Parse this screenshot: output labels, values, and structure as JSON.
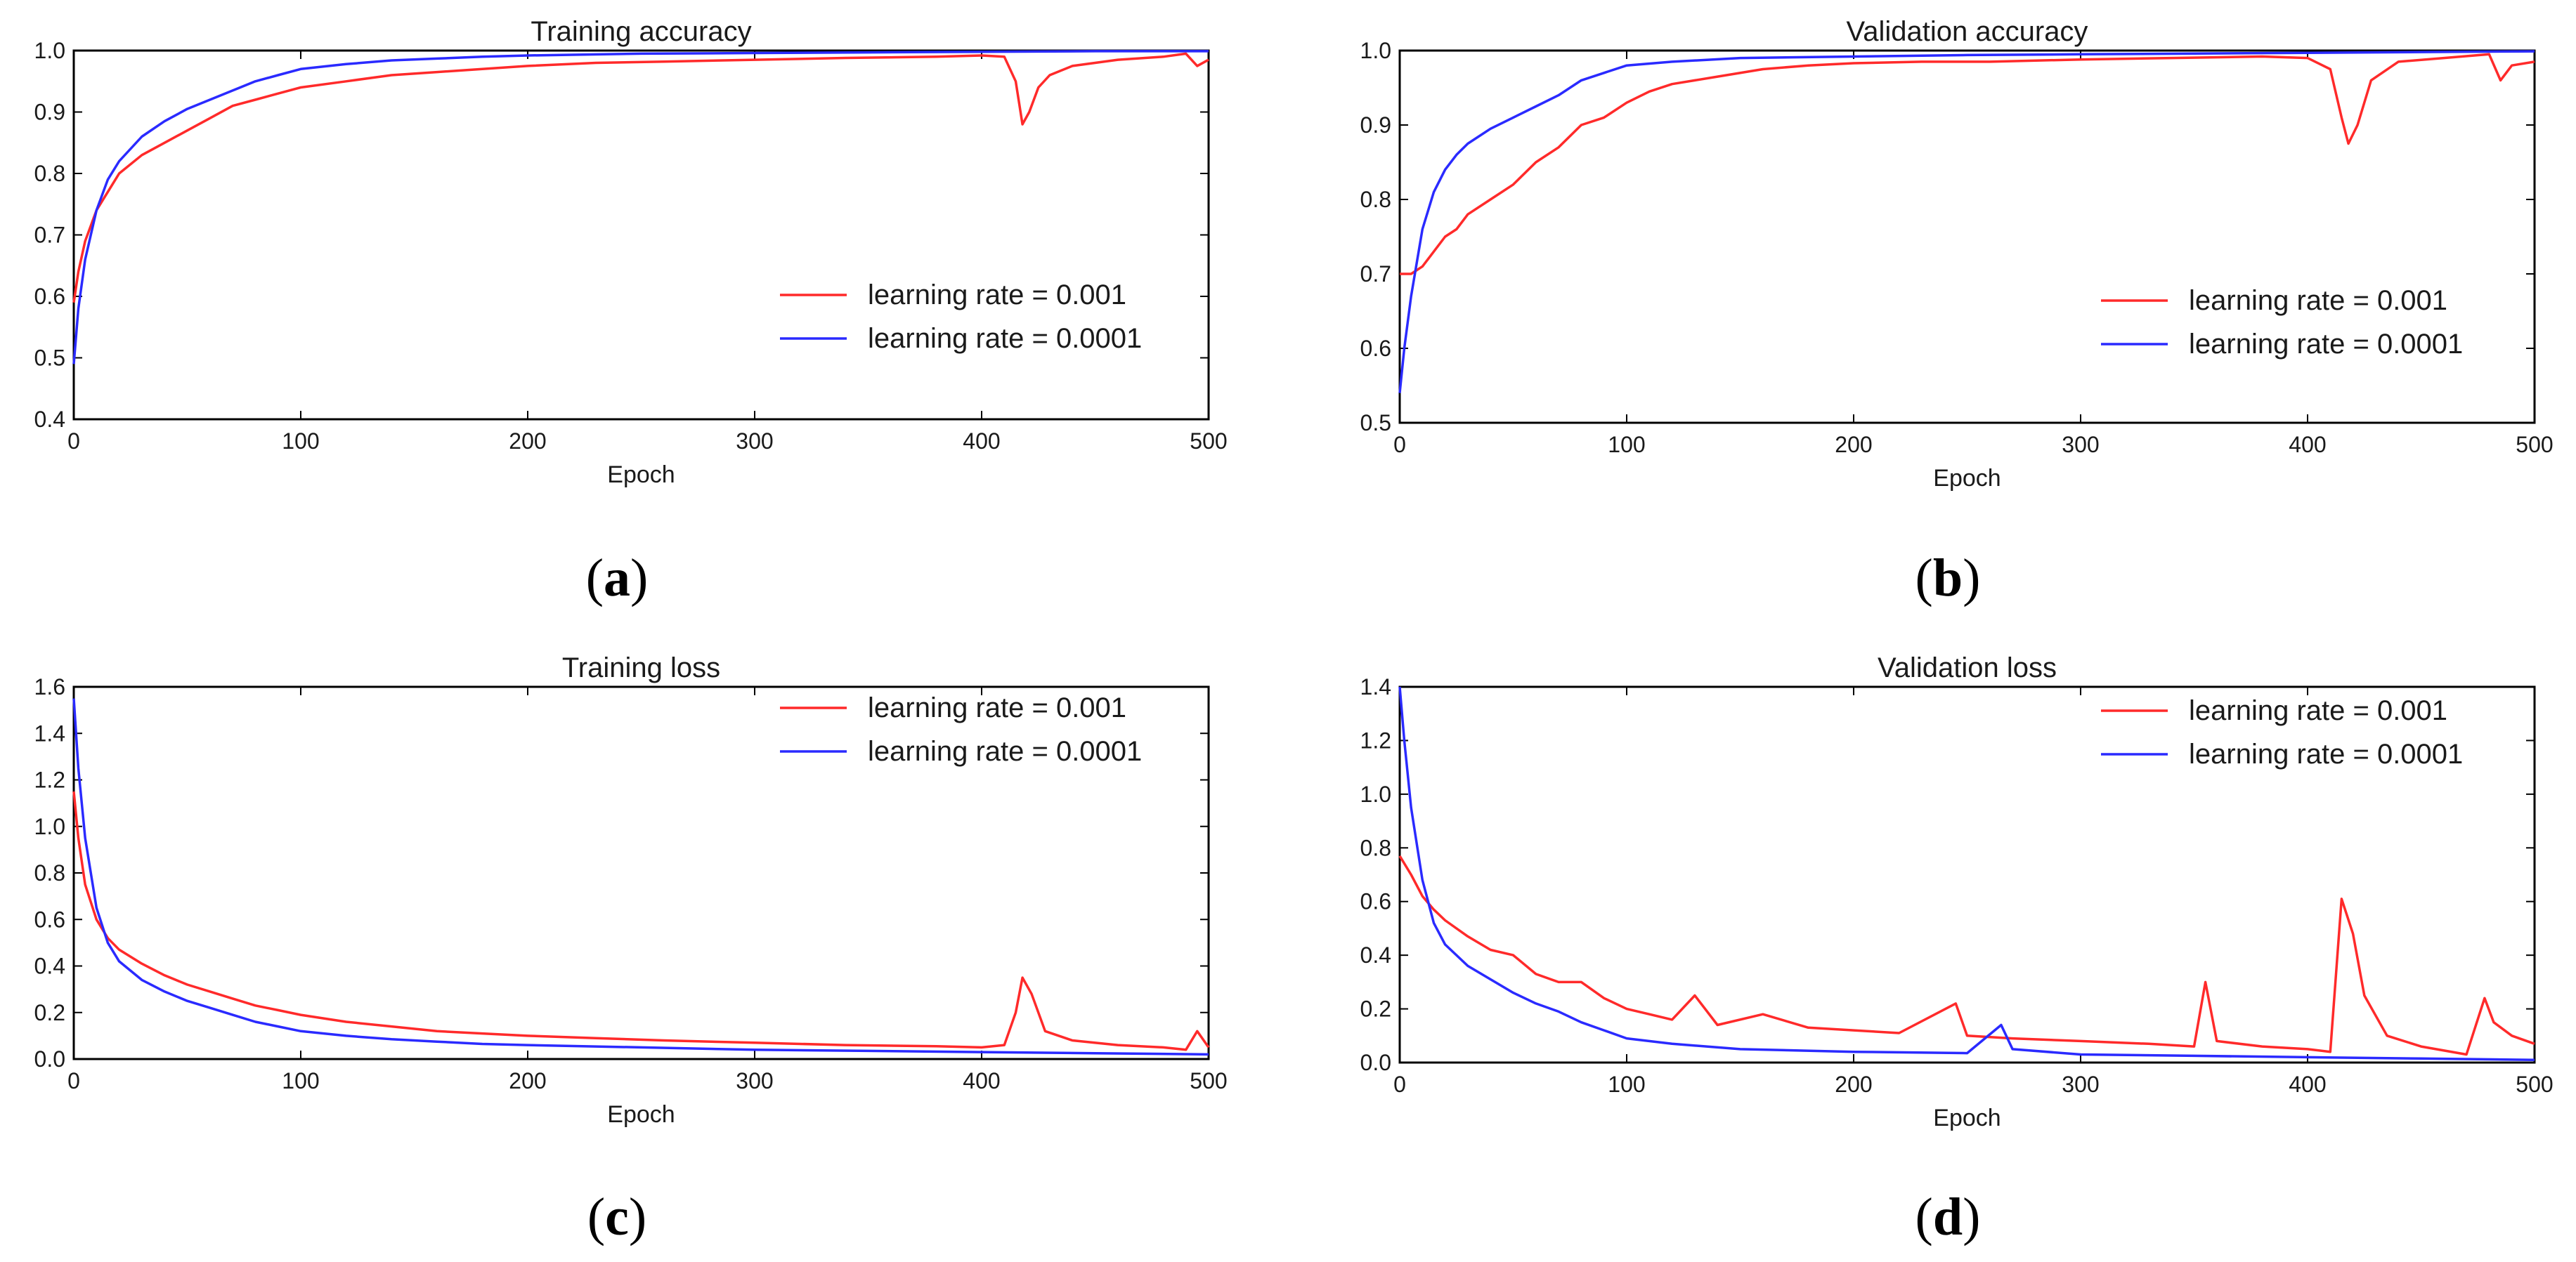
{
  "figure": {
    "captions": [
      {
        "open": "(",
        "letter": "a",
        "close": ")"
      },
      {
        "open": "(",
        "letter": "b",
        "close": ")"
      },
      {
        "open": "(",
        "letter": "c",
        "close": ")"
      },
      {
        "open": "(",
        "letter": "d",
        "close": ")"
      }
    ],
    "colors": {
      "lr_001": "#ff2a2a",
      "lr_0001": "#2a2aff"
    }
  },
  "chart_data": [
    {
      "type": "line",
      "title": "Training accuracy",
      "xlabel": "Epoch",
      "ylabel": "",
      "xlim": [
        0,
        500
      ],
      "ylim": [
        0.4,
        1.0
      ],
      "xticks": [
        0,
        100,
        200,
        300,
        400,
        500
      ],
      "yticks": [
        0.4,
        0.5,
        0.6,
        0.7,
        0.8,
        0.9,
        1.0
      ],
      "legend_position": "lower-right",
      "series": [
        {
          "name": "learning rate = 0.001",
          "color": "#ff2a2a",
          "x": [
            0,
            2,
            5,
            10,
            15,
            20,
            30,
            40,
            50,
            60,
            70,
            80,
            90,
            100,
            120,
            140,
            160,
            180,
            200,
            230,
            260,
            300,
            340,
            380,
            400,
            410,
            415,
            418,
            421,
            425,
            430,
            440,
            460,
            480,
            490,
            495,
            500
          ],
          "y": [
            0.59,
            0.64,
            0.69,
            0.74,
            0.77,
            0.8,
            0.83,
            0.85,
            0.87,
            0.89,
            0.91,
            0.92,
            0.93,
            0.94,
            0.95,
            0.96,
            0.965,
            0.97,
            0.975,
            0.98,
            0.982,
            0.985,
            0.988,
            0.99,
            0.992,
            0.99,
            0.95,
            0.88,
            0.9,
            0.94,
            0.96,
            0.975,
            0.985,
            0.99,
            0.995,
            0.975,
            0.985
          ]
        },
        {
          "name": "learning rate = 0.0001",
          "color": "#2a2aff",
          "x": [
            0,
            2,
            5,
            10,
            15,
            20,
            30,
            40,
            50,
            60,
            70,
            80,
            90,
            100,
            120,
            140,
            160,
            180,
            200,
            250,
            300,
            350,
            400,
            450,
            500
          ],
          "y": [
            0.49,
            0.58,
            0.66,
            0.74,
            0.79,
            0.82,
            0.86,
            0.885,
            0.905,
            0.92,
            0.935,
            0.95,
            0.96,
            0.97,
            0.978,
            0.984,
            0.987,
            0.99,
            0.992,
            0.995,
            0.996,
            0.997,
            0.998,
            0.999,
            0.999
          ]
        }
      ]
    },
    {
      "type": "line",
      "title": "Validation accuracy",
      "xlabel": "Epoch",
      "ylabel": "",
      "xlim": [
        0,
        500
      ],
      "ylim": [
        0.5,
        1.0
      ],
      "xticks": [
        0,
        100,
        200,
        300,
        400,
        500
      ],
      "yticks": [
        0.5,
        0.6,
        0.7,
        0.8,
        0.9,
        1.0
      ],
      "legend_position": "lower-right",
      "series": [
        {
          "name": "learning rate = 0.001",
          "color": "#ff2a2a",
          "x": [
            0,
            5,
            10,
            15,
            20,
            25,
            30,
            40,
            50,
            60,
            70,
            80,
            90,
            100,
            110,
            120,
            140,
            160,
            180,
            200,
            230,
            260,
            300,
            340,
            380,
            400,
            410,
            415,
            418,
            422,
            428,
            440,
            460,
            480,
            485,
            490,
            500
          ],
          "y": [
            0.7,
            0.7,
            0.71,
            0.73,
            0.75,
            0.76,
            0.78,
            0.8,
            0.82,
            0.85,
            0.87,
            0.9,
            0.91,
            0.93,
            0.945,
            0.955,
            0.965,
            0.975,
            0.98,
            0.983,
            0.985,
            0.985,
            0.988,
            0.99,
            0.992,
            0.99,
            0.975,
            0.91,
            0.875,
            0.9,
            0.96,
            0.985,
            0.99,
            0.995,
            0.96,
            0.98,
            0.985
          ]
        },
        {
          "name": "learning rate = 0.0001",
          "color": "#2a2aff",
          "x": [
            0,
            2,
            5,
            10,
            15,
            20,
            25,
            30,
            40,
            50,
            60,
            70,
            80,
            90,
            100,
            120,
            150,
            200,
            250,
            300,
            350,
            400,
            450,
            500
          ],
          "y": [
            0.54,
            0.6,
            0.67,
            0.76,
            0.81,
            0.84,
            0.86,
            0.875,
            0.895,
            0.91,
            0.925,
            0.94,
            0.96,
            0.97,
            0.98,
            0.985,
            0.99,
            0.992,
            0.994,
            0.995,
            0.996,
            0.997,
            0.998,
            0.999
          ]
        }
      ]
    },
    {
      "type": "line",
      "title": "Training loss",
      "xlabel": "Epoch",
      "ylabel": "",
      "xlim": [
        0,
        500
      ],
      "ylim": [
        0.0,
        1.6
      ],
      "xticks": [
        0,
        100,
        200,
        300,
        400,
        500
      ],
      "yticks": [
        0.0,
        0.2,
        0.4,
        0.6,
        0.8,
        1.0,
        1.2,
        1.4,
        1.6
      ],
      "legend_position": "upper-right",
      "series": [
        {
          "name": "learning rate = 0.001",
          "color": "#ff2a2a",
          "x": [
            0,
            2,
            5,
            10,
            15,
            20,
            30,
            40,
            50,
            60,
            70,
            80,
            90,
            100,
            120,
            140,
            160,
            180,
            200,
            230,
            260,
            300,
            340,
            380,
            400,
            410,
            415,
            418,
            422,
            428,
            440,
            460,
            480,
            490,
            495,
            500
          ],
          "y": [
            1.15,
            0.95,
            0.75,
            0.6,
            0.52,
            0.47,
            0.41,
            0.36,
            0.32,
            0.29,
            0.26,
            0.23,
            0.21,
            0.19,
            0.16,
            0.14,
            0.12,
            0.11,
            0.1,
            0.09,
            0.08,
            0.07,
            0.06,
            0.055,
            0.05,
            0.06,
            0.2,
            0.35,
            0.28,
            0.12,
            0.08,
            0.06,
            0.05,
            0.04,
            0.12,
            0.05
          ]
        },
        {
          "name": "learning rate = 0.0001",
          "color": "#2a2aff",
          "x": [
            0,
            2,
            5,
            10,
            15,
            20,
            30,
            40,
            50,
            60,
            70,
            80,
            90,
            100,
            120,
            140,
            160,
            180,
            200,
            250,
            300,
            350,
            400,
            450,
            500
          ],
          "y": [
            1.55,
            1.25,
            0.95,
            0.65,
            0.5,
            0.42,
            0.34,
            0.29,
            0.25,
            0.22,
            0.19,
            0.16,
            0.14,
            0.12,
            0.1,
            0.085,
            0.075,
            0.065,
            0.06,
            0.05,
            0.04,
            0.035,
            0.03,
            0.025,
            0.02
          ]
        }
      ]
    },
    {
      "type": "line",
      "title": "Validation loss",
      "xlabel": "Epoch",
      "ylabel": "",
      "xlim": [
        0,
        500
      ],
      "ylim": [
        0.0,
        1.4
      ],
      "xticks": [
        0,
        100,
        200,
        300,
        400,
        500
      ],
      "yticks": [
        0.0,
        0.2,
        0.4,
        0.6,
        0.8,
        1.0,
        1.2,
        1.4
      ],
      "legend_position": "upper-right",
      "series": [
        {
          "name": "learning rate = 0.001",
          "color": "#ff2a2a",
          "x": [
            0,
            5,
            10,
            15,
            20,
            30,
            40,
            50,
            60,
            70,
            80,
            90,
            100,
            110,
            120,
            130,
            140,
            160,
            180,
            200,
            220,
            245,
            250,
            270,
            300,
            330,
            350,
            355,
            360,
            380,
            400,
            410,
            415,
            420,
            425,
            435,
            450,
            470,
            478,
            482,
            490,
            500
          ],
          "y": [
            0.77,
            0.7,
            0.62,
            0.57,
            0.53,
            0.47,
            0.42,
            0.4,
            0.33,
            0.3,
            0.3,
            0.24,
            0.2,
            0.18,
            0.16,
            0.25,
            0.14,
            0.18,
            0.13,
            0.12,
            0.11,
            0.22,
            0.1,
            0.09,
            0.08,
            0.07,
            0.06,
            0.3,
            0.08,
            0.06,
            0.05,
            0.04,
            0.61,
            0.48,
            0.25,
            0.1,
            0.06,
            0.03,
            0.24,
            0.15,
            0.1,
            0.07
          ]
        },
        {
          "name": "learning rate = 0.0001",
          "color": "#2a2aff",
          "x": [
            0,
            2,
            5,
            10,
            15,
            20,
            30,
            40,
            50,
            60,
            70,
            80,
            90,
            100,
            120,
            150,
            200,
            250,
            265,
            270,
            300,
            350,
            400,
            450,
            500
          ],
          "y": [
            1.4,
            1.2,
            0.95,
            0.68,
            0.52,
            0.44,
            0.36,
            0.31,
            0.26,
            0.22,
            0.19,
            0.15,
            0.12,
            0.09,
            0.07,
            0.05,
            0.04,
            0.035,
            0.14,
            0.05,
            0.03,
            0.025,
            0.02,
            0.015,
            0.01
          ]
        }
      ]
    }
  ]
}
